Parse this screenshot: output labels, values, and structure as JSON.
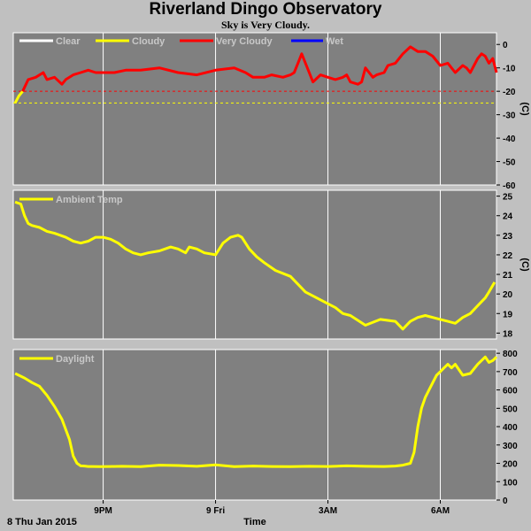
{
  "title": "Riverland Dingo Observatory",
  "subtitle": "Sky is Very Cloudy.",
  "footer": {
    "date": "8 Thu Jan 2015",
    "time_label": "Time"
  },
  "colors": {
    "panel_bg": "#808080",
    "grid": "#ffffff",
    "clear": "#ffffff",
    "cloudy": "#ffff00",
    "very_cloudy": "#ff0000",
    "wet": "#0000ff"
  },
  "chart_data": [
    {
      "type": "line",
      "name": "sky",
      "legend": [
        "Clear",
        "Cloudy",
        "Very Cloudy",
        "Wet"
      ],
      "yunit": "(C)",
      "ylim": [
        -60,
        5
      ],
      "yticks": [
        0,
        -10,
        -20,
        -30,
        -40,
        -50,
        -60
      ],
      "xlim": [
        18.6,
        31.5
      ],
      "xticks": [
        {
          "x": 21,
          "label": "9PM"
        },
        {
          "x": 24,
          "label": "9 Fri"
        },
        {
          "x": 27,
          "label": "3AM"
        },
        {
          "x": 30,
          "label": "6AM"
        }
      ],
      "thresholds": [
        {
          "value": -20,
          "color": "#ff0000"
        },
        {
          "value": -25,
          "color": "#ffff00"
        }
      ],
      "series": [
        {
          "name": "Cloudy",
          "color": "#ffff00",
          "x": [
            18.65,
            18.75,
            18.85
          ],
          "y": [
            -25,
            -22,
            -20
          ]
        },
        {
          "name": "Very Cloudy",
          "color": "#ff0000",
          "x": [
            18.85,
            19.0,
            19.2,
            19.4,
            19.5,
            19.7,
            19.9,
            20.0,
            20.2,
            20.4,
            20.6,
            20.8,
            21.0,
            21.3,
            21.6,
            22.0,
            22.5,
            23.0,
            23.5,
            24.0,
            24.5,
            24.8,
            25.0,
            25.3,
            25.5,
            25.8,
            26.0,
            26.1,
            26.2,
            26.3,
            26.5,
            26.6,
            26.8,
            27.0,
            27.2,
            27.4,
            27.5,
            27.6,
            27.8,
            27.9,
            28.0,
            28.2,
            28.3,
            28.5,
            28.6,
            28.8,
            29.0,
            29.2,
            29.4,
            29.6,
            29.8,
            30.0,
            30.2,
            30.4,
            30.6,
            30.7,
            30.8,
            31.0,
            31.1,
            31.2,
            31.3,
            31.4,
            31.5
          ],
          "y": [
            -20,
            -15,
            -14,
            -12,
            -15,
            -14,
            -17,
            -15,
            -13,
            -12,
            -11,
            -12,
            -12,
            -12,
            -11,
            -11,
            -10,
            -12,
            -13,
            -11,
            -10,
            -12,
            -14,
            -14,
            -13,
            -14,
            -13,
            -12,
            -8,
            -4,
            -12,
            -16,
            -13,
            -14,
            -15,
            -14,
            -13,
            -16,
            -17,
            -16,
            -10,
            -14,
            -13,
            -12,
            -9,
            -8,
            -4,
            -1,
            -3,
            -3,
            -5,
            -9,
            -8,
            -12,
            -9,
            -10,
            -12,
            -6,
            -4,
            -5,
            -8,
            -6,
            -12
          ]
        }
      ]
    },
    {
      "type": "line",
      "name": "ambient",
      "legend": [
        "Ambient Temp"
      ],
      "yunit": "(C)",
      "ylim": [
        17.7,
        25.3
      ],
      "yticks": [
        25,
        24,
        23,
        22,
        21,
        20,
        19,
        18
      ],
      "xlim": [
        18.6,
        31.5
      ],
      "series": [
        {
          "name": "Ambient Temp",
          "color": "#ffff00",
          "x": [
            18.65,
            18.8,
            18.9,
            19.0,
            19.1,
            19.3,
            19.5,
            19.7,
            20.0,
            20.2,
            20.4,
            20.6,
            20.8,
            21.0,
            21.2,
            21.4,
            21.6,
            21.8,
            22.0,
            22.2,
            22.5,
            22.8,
            23.0,
            23.2,
            23.3,
            23.5,
            23.7,
            24.0,
            24.2,
            24.4,
            24.6,
            24.7,
            24.9,
            25.1,
            25.3,
            25.6,
            26.0,
            26.4,
            26.8,
            27.0,
            27.2,
            27.4,
            27.6,
            28.0,
            28.4,
            28.8,
            29.0,
            29.1,
            29.2,
            29.4,
            29.6,
            29.8,
            30.0,
            30.2,
            30.4,
            30.6,
            30.8,
            31.0,
            31.2,
            31.3,
            31.45
          ],
          "y": [
            24.7,
            24.6,
            24.0,
            23.6,
            23.5,
            23.4,
            23.2,
            23.1,
            22.9,
            22.7,
            22.6,
            22.7,
            22.9,
            22.9,
            22.8,
            22.6,
            22.3,
            22.1,
            22.0,
            22.1,
            22.2,
            22.4,
            22.3,
            22.1,
            22.4,
            22.3,
            22.1,
            22.0,
            22.6,
            22.9,
            23.0,
            22.9,
            22.3,
            21.9,
            21.6,
            21.2,
            20.9,
            20.1,
            19.7,
            19.5,
            19.3,
            19.0,
            18.9,
            18.4,
            18.7,
            18.6,
            18.2,
            18.4,
            18.6,
            18.8,
            18.9,
            18.8,
            18.7,
            18.6,
            18.5,
            18.8,
            19.0,
            19.4,
            19.8,
            20.1,
            20.6
          ]
        }
      ]
    },
    {
      "type": "line",
      "name": "daylight",
      "legend": [
        "Daylight"
      ],
      "ylim": [
        0,
        820
      ],
      "yticks": [
        800,
        700,
        600,
        500,
        400,
        300,
        200,
        100,
        0
      ],
      "xlim": [
        18.6,
        31.5
      ],
      "xticks": [
        {
          "x": 21,
          "label": "9PM"
        },
        {
          "x": 24,
          "label": "9 Fri"
        },
        {
          "x": 27,
          "label": "3AM"
        },
        {
          "x": 30,
          "label": "6AM"
        }
      ],
      "series": [
        {
          "name": "Daylight",
          "color": "#ffff00",
          "x": [
            18.65,
            18.9,
            19.1,
            19.3,
            19.5,
            19.7,
            19.9,
            20.1,
            20.2,
            20.3,
            20.4,
            20.5,
            20.6,
            20.7,
            20.9,
            21.2,
            21.5,
            22.0,
            22.5,
            23.0,
            23.5,
            24.0,
            24.5,
            25.0,
            25.5,
            26.0,
            26.5,
            27.0,
            27.5,
            28.0,
            28.5,
            28.8,
            29.0,
            29.2,
            29.3,
            29.4,
            29.5,
            29.6,
            29.7,
            29.8,
            29.9,
            30.0,
            30.1,
            30.2,
            30.3,
            30.4,
            30.6,
            30.8,
            31.0,
            31.2,
            31.3,
            31.4,
            31.5
          ],
          "y": [
            690,
            665,
            640,
            620,
            570,
            510,
            440,
            330,
            240,
            200,
            186,
            185,
            183,
            183,
            182,
            183,
            184,
            182,
            190,
            188,
            184,
            192,
            182,
            185,
            183,
            182,
            184,
            183,
            186,
            184,
            183,
            185,
            190,
            200,
            260,
            400,
            500,
            560,
            600,
            640,
            680,
            700,
            720,
            740,
            720,
            740,
            680,
            690,
            740,
            780,
            750,
            760,
            780
          ]
        }
      ]
    }
  ]
}
